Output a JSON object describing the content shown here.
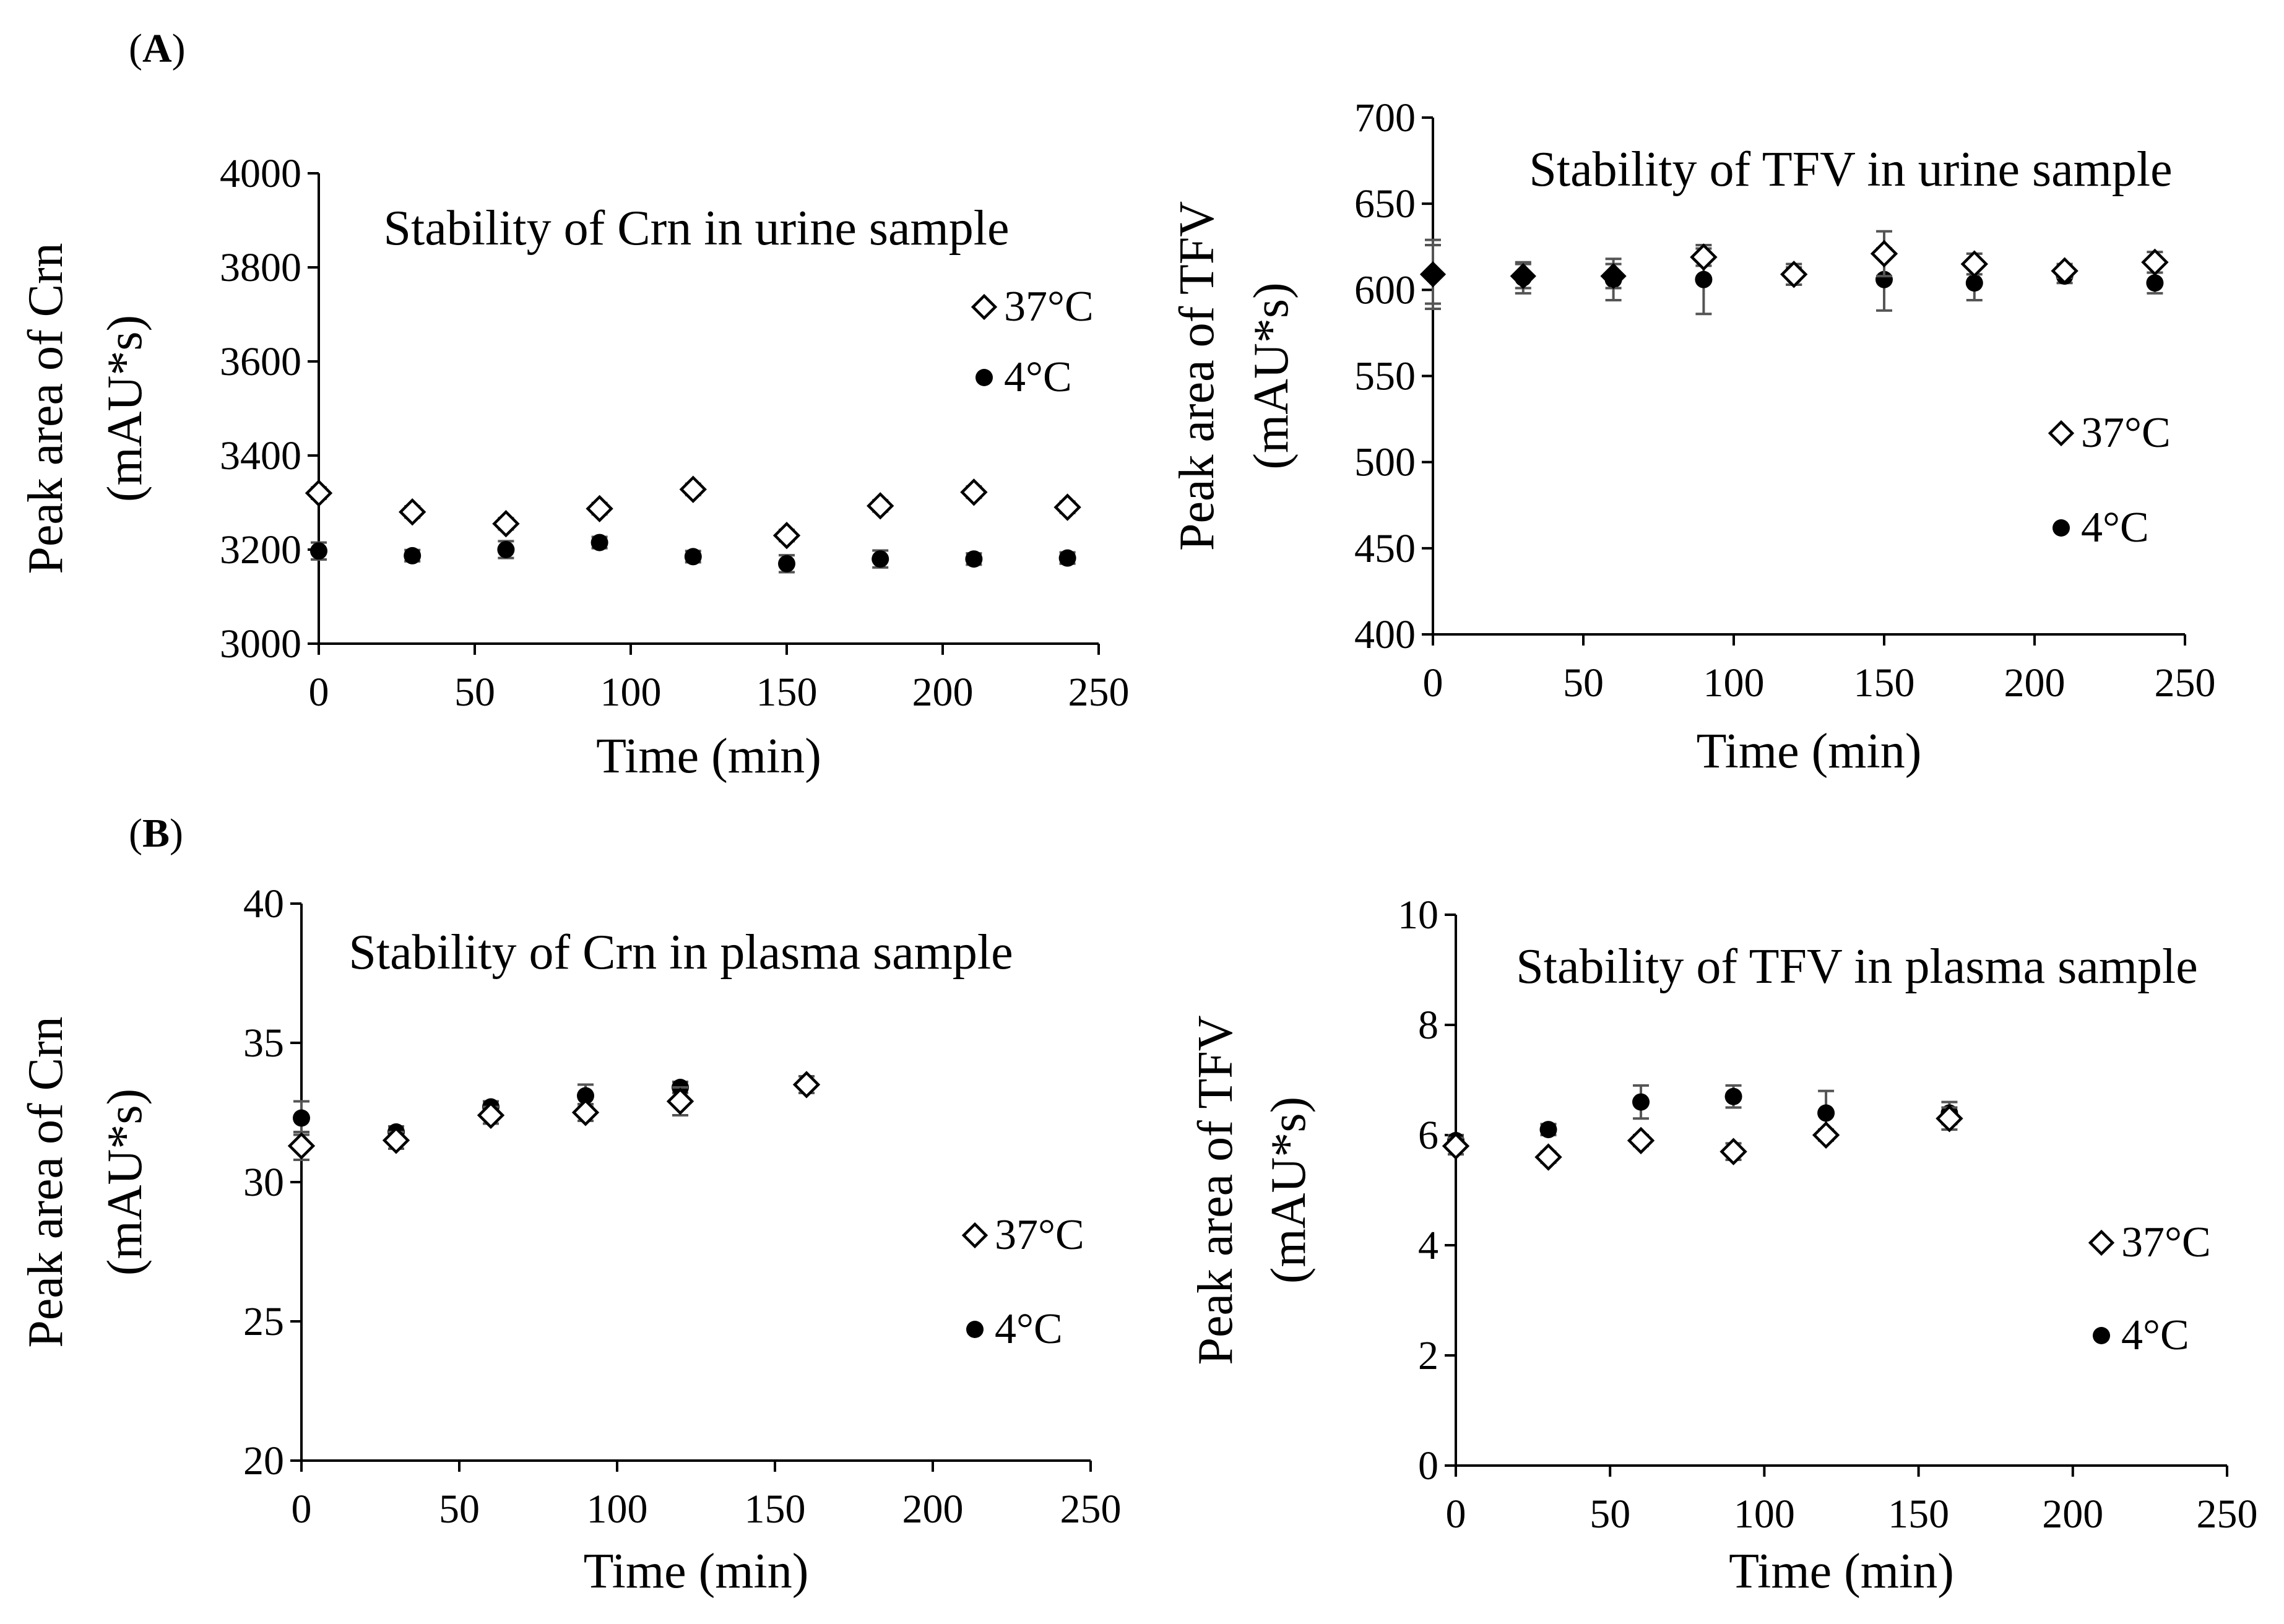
{
  "panels": [
    {
      "label": "A",
      "open": "(",
      "close": ")"
    },
    {
      "label": "B",
      "open": "(",
      "close": ")"
    }
  ],
  "chart_data": [
    {
      "type": "scatter",
      "title": "Stability of Crn in urine sample",
      "xlabel": "Time (min)",
      "ylabel_line1": "Peak area of Crn",
      "ylabel_line2": "(mAU*s)",
      "xlim": [
        0,
        250
      ],
      "ylim": [
        3000,
        4000
      ],
      "xticks": [
        0,
        50,
        100,
        150,
        200,
        250
      ],
      "yticks": [
        3000,
        3200,
        3400,
        3600,
        3800,
        4000
      ],
      "x": [
        0,
        30,
        60,
        90,
        120,
        150,
        180,
        210,
        240
      ],
      "series": [
        {
          "name": "37°C",
          "marker": "diamond-open",
          "values": [
            3320,
            3280,
            3255,
            3287,
            3328,
            3230,
            3293,
            3322,
            3290
          ],
          "errors": [
            12,
            12,
            12,
            12,
            12,
            12,
            12,
            12,
            12
          ]
        },
        {
          "name": "4°C",
          "marker": "circle",
          "values": [
            3197,
            3187,
            3200,
            3215,
            3185,
            3170,
            3180,
            3180,
            3182
          ],
          "errors": [
            18,
            12,
            18,
            12,
            12,
            18,
            18,
            12,
            12
          ]
        }
      ],
      "legend": "right"
    },
    {
      "type": "scatter",
      "title": "Stability of TFV in urine sample",
      "xlabel": "Time (min)",
      "ylabel_line1": "Peak area of TFV",
      "ylabel_line2": "(mAU*s)",
      "xlim": [
        0,
        250
      ],
      "ylim": [
        400,
        700
      ],
      "xticks": [
        0,
        50,
        100,
        150,
        200,
        250
      ],
      "yticks": [
        400,
        450,
        500,
        550,
        600,
        650,
        700
      ],
      "x": [
        0,
        30,
        60,
        90,
        120,
        150,
        180,
        210,
        240
      ],
      "series": [
        {
          "name": "37°C",
          "marker": "diamond-open",
          "values": [
            609,
            608,
            608,
            619,
            609,
            621,
            615,
            611,
            616
          ],
          "errors": [
            17,
            7,
            7,
            5,
            6,
            13,
            6,
            4,
            6
          ]
        },
        {
          "name": "4°C",
          "marker": "circle",
          "values": [
            609,
            607,
            606,
            606,
            608,
            606,
            604,
            608,
            604
          ],
          "errors": [
            20,
            9,
            12,
            20,
            5,
            18,
            10,
            4,
            6
          ]
        }
      ],
      "legend": "right"
    },
    {
      "type": "scatter",
      "title": "Stability of Crn in plasma sample",
      "xlabel": "Time (min)",
      "ylabel_line1": "Peak area of Crn",
      "ylabel_line2": "(mAU*s)",
      "xlim": [
        0,
        250
      ],
      "ylim": [
        20,
        40
      ],
      "xticks": [
        0,
        50,
        100,
        150,
        200,
        250
      ],
      "yticks": [
        20,
        25,
        30,
        35,
        40
      ],
      "x": [
        0,
        30,
        60,
        90,
        120,
        160
      ],
      "series": [
        {
          "name": "37°C",
          "marker": "diamond-open",
          "values": [
            31.3,
            31.5,
            32.4,
            32.5,
            32.9,
            33.5
          ],
          "errors": [
            0.5,
            0.3,
            0.3,
            0.3,
            0.5,
            0.3
          ]
        },
        {
          "name": "4°C",
          "marker": "circle",
          "values": [
            32.3,
            31.8,
            32.7,
            33.1,
            33.4,
            33.5
          ],
          "errors": [
            0.6,
            0.2,
            0.2,
            0.4,
            0.2,
            0.3
          ]
        }
      ],
      "legend": "right"
    },
    {
      "type": "scatter",
      "title": "Stability of TFV in plasma sample",
      "xlabel": "Time (min)",
      "ylabel_line1": "Peak area of TFV",
      "ylabel_line2": "(mAU*s)",
      "xlim": [
        0,
        250
      ],
      "ylim": [
        0,
        10
      ],
      "xticks": [
        0,
        50,
        100,
        150,
        200,
        250
      ],
      "yticks": [
        0,
        2,
        4,
        6,
        8,
        10
      ],
      "x": [
        0,
        30,
        60,
        90,
        120,
        160
      ],
      "series": [
        {
          "name": "37°C",
          "marker": "diamond-open",
          "values": [
            5.8,
            5.6,
            5.9,
            5.7,
            6.0,
            6.3
          ],
          "errors": [
            0.15,
            0.1,
            0.1,
            0.15,
            0.1,
            0.2
          ]
        },
        {
          "name": "4°C",
          "marker": "circle",
          "values": [
            5.9,
            6.1,
            6.6,
            6.7,
            6.4,
            6.4
          ],
          "errors": [
            0.1,
            0.1,
            0.3,
            0.2,
            0.4,
            0.2
          ]
        }
      ],
      "legend": "right"
    }
  ]
}
